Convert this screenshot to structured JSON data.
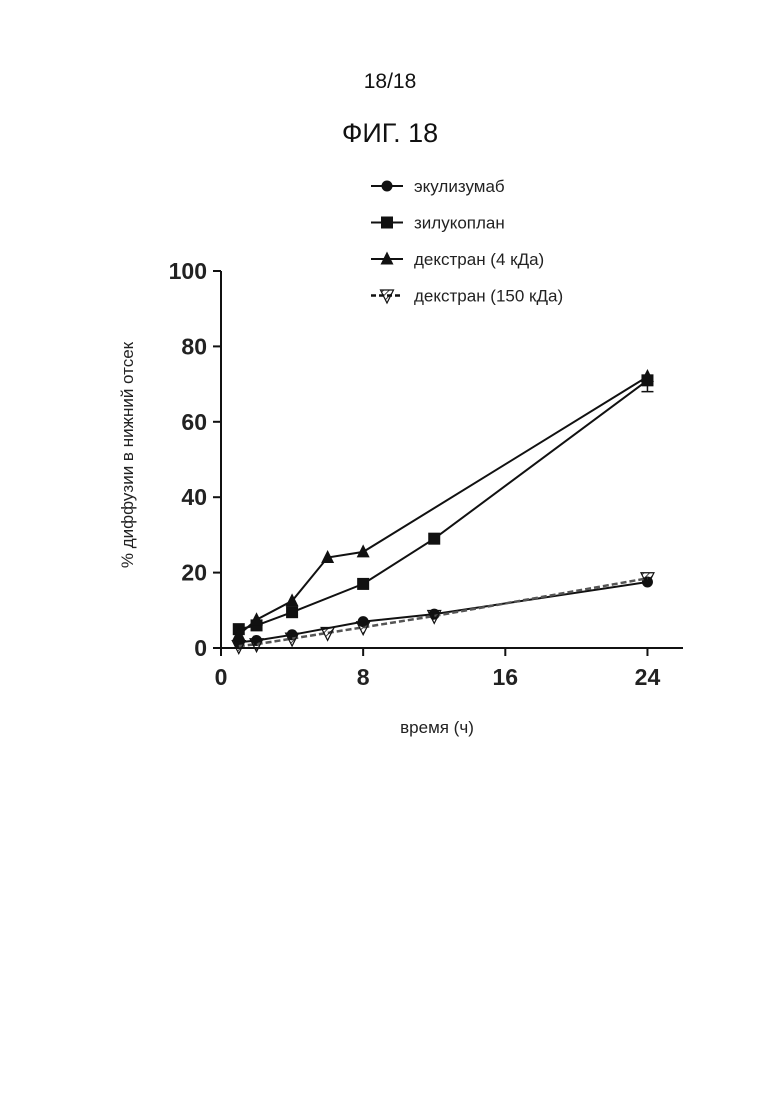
{
  "page": {
    "page_number": "18/18",
    "figure_title": "ФИГ. 18"
  },
  "chart_data": {
    "type": "line",
    "title": "",
    "xlabel": "время (ч)",
    "ylabel": "% диффузии в нижний отсек",
    "xlim": [
      0,
      26
    ],
    "ylim": [
      0,
      100
    ],
    "x_ticks": [
      0,
      8,
      16,
      24
    ],
    "y_ticks": [
      0,
      20,
      40,
      60,
      80,
      100
    ],
    "grid": false,
    "legend_placement": "top",
    "series": [
      {
        "name": "экулизумаб",
        "marker": "circle",
        "points": [
          [
            1,
            1.5
          ],
          [
            2,
            2
          ],
          [
            4,
            3.5
          ],
          [
            8,
            7
          ],
          [
            12,
            9
          ],
          [
            24,
            17.5
          ]
        ]
      },
      {
        "name": "зилукоплан",
        "marker": "square",
        "points": [
          [
            1,
            5
          ],
          [
            2,
            6
          ],
          [
            4,
            9.5
          ],
          [
            8,
            17
          ],
          [
            12,
            29
          ],
          [
            24,
            71
          ]
        ],
        "error_last": 3
      },
      {
        "name": "декстран (4 кДа)",
        "marker": "triangle",
        "points": [
          [
            1,
            3.5
          ],
          [
            2,
            7.5
          ],
          [
            4,
            12.5
          ],
          [
            6,
            24
          ],
          [
            8,
            25.5
          ],
          [
            24,
            72
          ]
        ]
      },
      {
        "name": "декстран (150 кДа)",
        "marker": "triangle-down",
        "points": [
          [
            1,
            0.5
          ],
          [
            2,
            1
          ],
          [
            4,
            2.5
          ],
          [
            6,
            4
          ],
          [
            8,
            5.5
          ],
          [
            12,
            8.5
          ],
          [
            24,
            18.5
          ]
        ]
      }
    ]
  }
}
